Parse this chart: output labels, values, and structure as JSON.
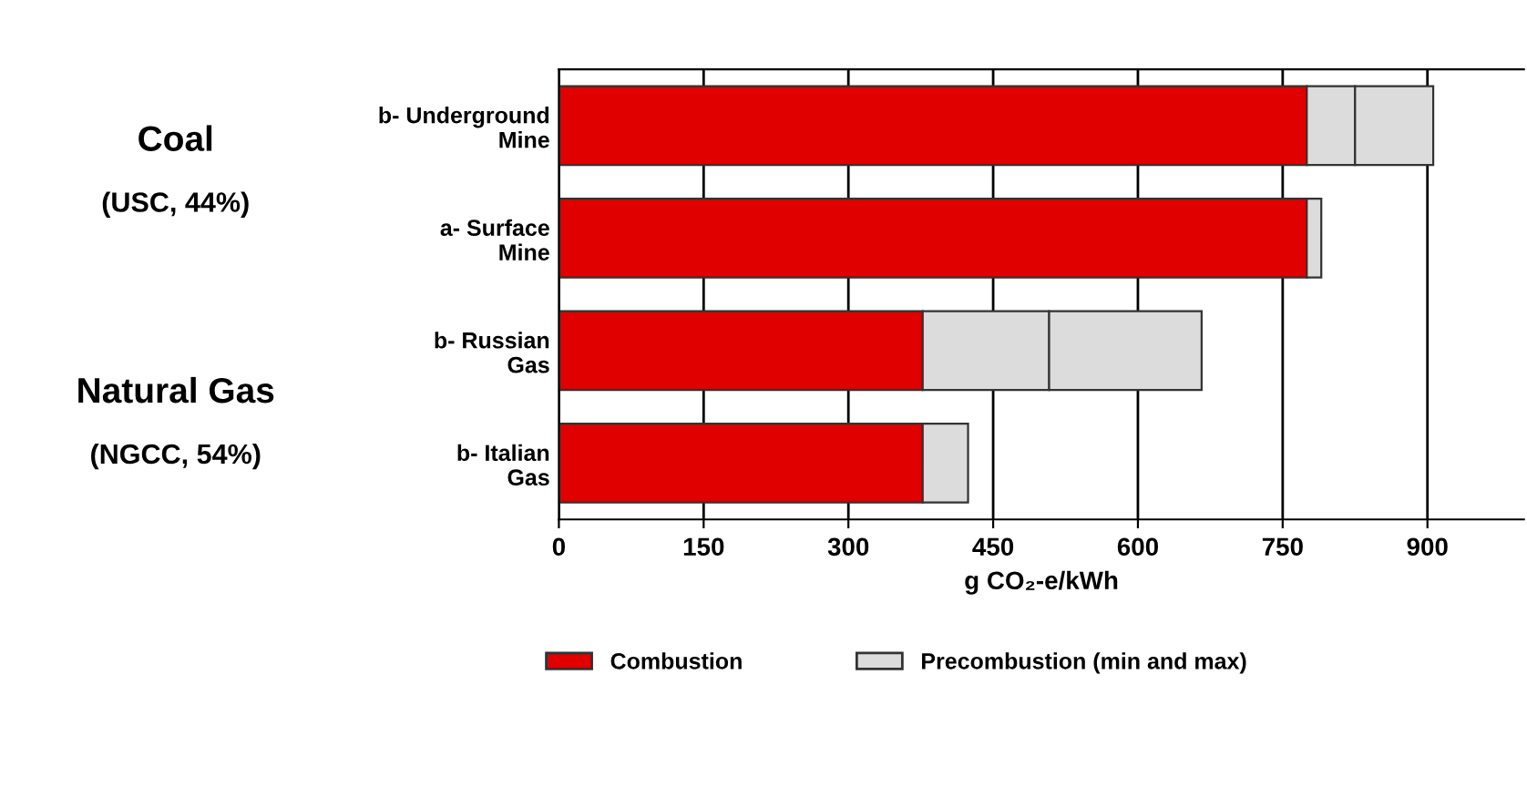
{
  "chart_data": {
    "type": "bar",
    "orientation": "horizontal",
    "stacked": true,
    "categories": [
      "b- Underground\nMine",
      "a- Surface\nMine",
      "b- Russian\nGas",
      "b- Italian\nGas"
    ],
    "series": [
      {
        "name": "Combustion",
        "color": "#e00000",
        "values": [
          775,
          775,
          377,
          377
        ]
      },
      {
        "name": "Precombustion (min and max)",
        "color": "#dcdcdc",
        "values": [
          50,
          15,
          131,
          47
        ]
      },
      {
        "color": "#dcdcdc",
        "values": [
          81,
          null,
          158,
          null
        ]
      }
    ],
    "xlim": [
      0,
      1000
    ],
    "xticks": [
      0,
      150,
      300,
      450,
      600,
      750,
      900
    ],
    "grid": "x",
    "xlabel": "g CO₂-e/kWh",
    "legend": "bottom",
    "annotations": [
      "Coal",
      "(USC, 44%)",
      "Natural Gas",
      "(NGCC, 54%)"
    ]
  }
}
